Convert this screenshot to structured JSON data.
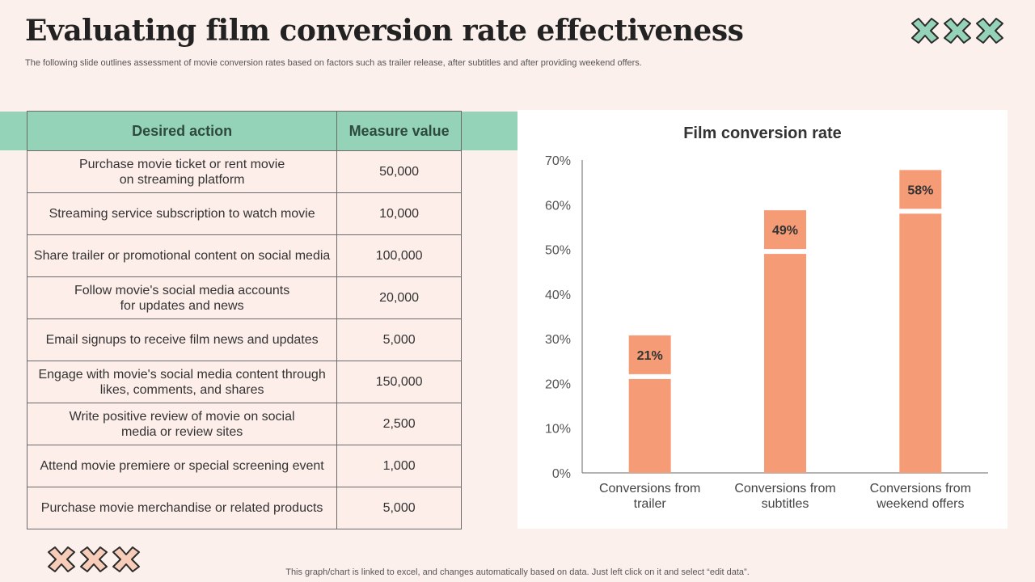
{
  "slide": {
    "title": "Evaluating film conversion rate effectiveness",
    "subtitle": "The following slide outlines assessment of movie conversion rates based on factors such as trailer release, after subtitles and after providing weekend offers.",
    "footer": "This graph/chart is linked to excel,  and changes automatically based on data. Just left click on it and select “edit data”."
  },
  "colors": {
    "accent_green": "#94d3b8",
    "bar_color": "#f59c77",
    "deco_peach": "#f7cdb9",
    "background": "#fcf0ec"
  },
  "table": {
    "headers": [
      "Desired action",
      "Measure value"
    ],
    "rows": [
      {
        "action": [
          "Purchase movie ticket or rent movie",
          "on streaming platform"
        ],
        "value": "50,000"
      },
      {
        "action": [
          "Streaming service subscription to watch movie"
        ],
        "value": "10,000"
      },
      {
        "action": [
          "Share trailer or promotional content on social media"
        ],
        "value": "100,000"
      },
      {
        "action": [
          "Follow movie's social media accounts",
          "for updates and news"
        ],
        "value": "20,000"
      },
      {
        "action": [
          "Email signups to receive film news and updates"
        ],
        "value": "5,000"
      },
      {
        "action": [
          "Engage with movie's social media content through",
          "likes, comments, and shares"
        ],
        "value": "150,000"
      },
      {
        "action": [
          "Write positive review of movie on social",
          "media or review sites"
        ],
        "value": "2,500"
      },
      {
        "action": [
          "Attend movie premiere or special screening event"
        ],
        "value": "1,000"
      },
      {
        "action": [
          "Purchase movie merchandise or related products"
        ],
        "value": "5,000"
      }
    ]
  },
  "chart_data": {
    "type": "bar",
    "title": "Film conversion rate",
    "categories": [
      [
        "Conversions from",
        "trailer"
      ],
      [
        "Conversions from",
        "subtitles"
      ],
      [
        "Conversions from",
        "weekend offers"
      ]
    ],
    "values": [
      21,
      49,
      58
    ],
    "data_labels": [
      "21%",
      "49%",
      "58%"
    ],
    "ylim": [
      0,
      70
    ],
    "yticks": [
      0,
      10,
      20,
      30,
      40,
      50,
      60,
      70
    ],
    "ytick_labels": [
      "0%",
      "10%",
      "20%",
      "30%",
      "40%",
      "50%",
      "60%",
      "70%"
    ],
    "xlabel": "",
    "ylabel": "",
    "grid": false,
    "legend": "none"
  }
}
